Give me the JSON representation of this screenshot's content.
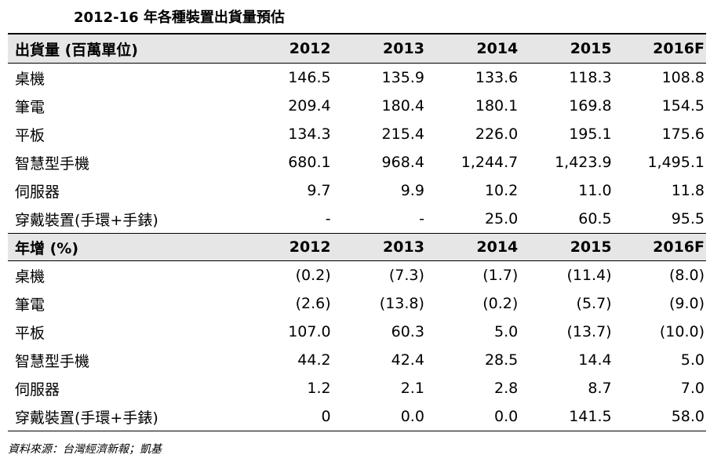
{
  "title": "2012-16 年各種裝置出貨量預估",
  "section1": {
    "header": [
      "出貨量 (百萬單位)",
      "2012",
      "2013",
      "2014",
      "2015",
      "2016F"
    ],
    "rows": [
      [
        "桌機",
        "146.5",
        "135.9",
        "133.6",
        "118.3",
        "108.8"
      ],
      [
        "筆電",
        "209.4",
        "180.4",
        "180.1",
        "169.8",
        "154.5"
      ],
      [
        "平板",
        "134.3",
        "215.4",
        "226.0",
        "195.1",
        "175.6"
      ],
      [
        "智慧型手機",
        "680.1",
        "968.4",
        "1,244.7",
        "1,423.9",
        "1,495.1"
      ],
      [
        "伺服器",
        "9.7",
        "9.9",
        "10.2",
        "11.0",
        "11.8"
      ],
      [
        "穿戴裝置(手環+手錶)",
        "-",
        "-",
        "25.0",
        "60.5",
        "95.5"
      ]
    ]
  },
  "section2": {
    "header": [
      "年增 (%)",
      "2012",
      "2013",
      "2014",
      "2015",
      "2016F"
    ],
    "rows": [
      [
        "桌機",
        "(0.2)",
        "(7.3)",
        "(1.7)",
        "(11.4)",
        "(8.0)"
      ],
      [
        "筆電",
        "(2.6)",
        "(13.8)",
        "(0.2)",
        "(5.7)",
        "(9.0)"
      ],
      [
        "平板",
        "107.0",
        "60.3",
        "5.0",
        "(13.7)",
        "(10.0)"
      ],
      [
        "智慧型手機",
        "44.2",
        "42.4",
        "28.5",
        "14.4",
        "5.0"
      ],
      [
        "伺服器",
        "1.2",
        "2.1",
        "2.8",
        "8.7",
        "7.0"
      ],
      [
        "穿戴裝置(手環+手錶)",
        "0",
        "0.0",
        "0.0",
        "141.5",
        "58.0"
      ]
    ]
  },
  "source": "資料來源：台灣經濟新報；凱基"
}
